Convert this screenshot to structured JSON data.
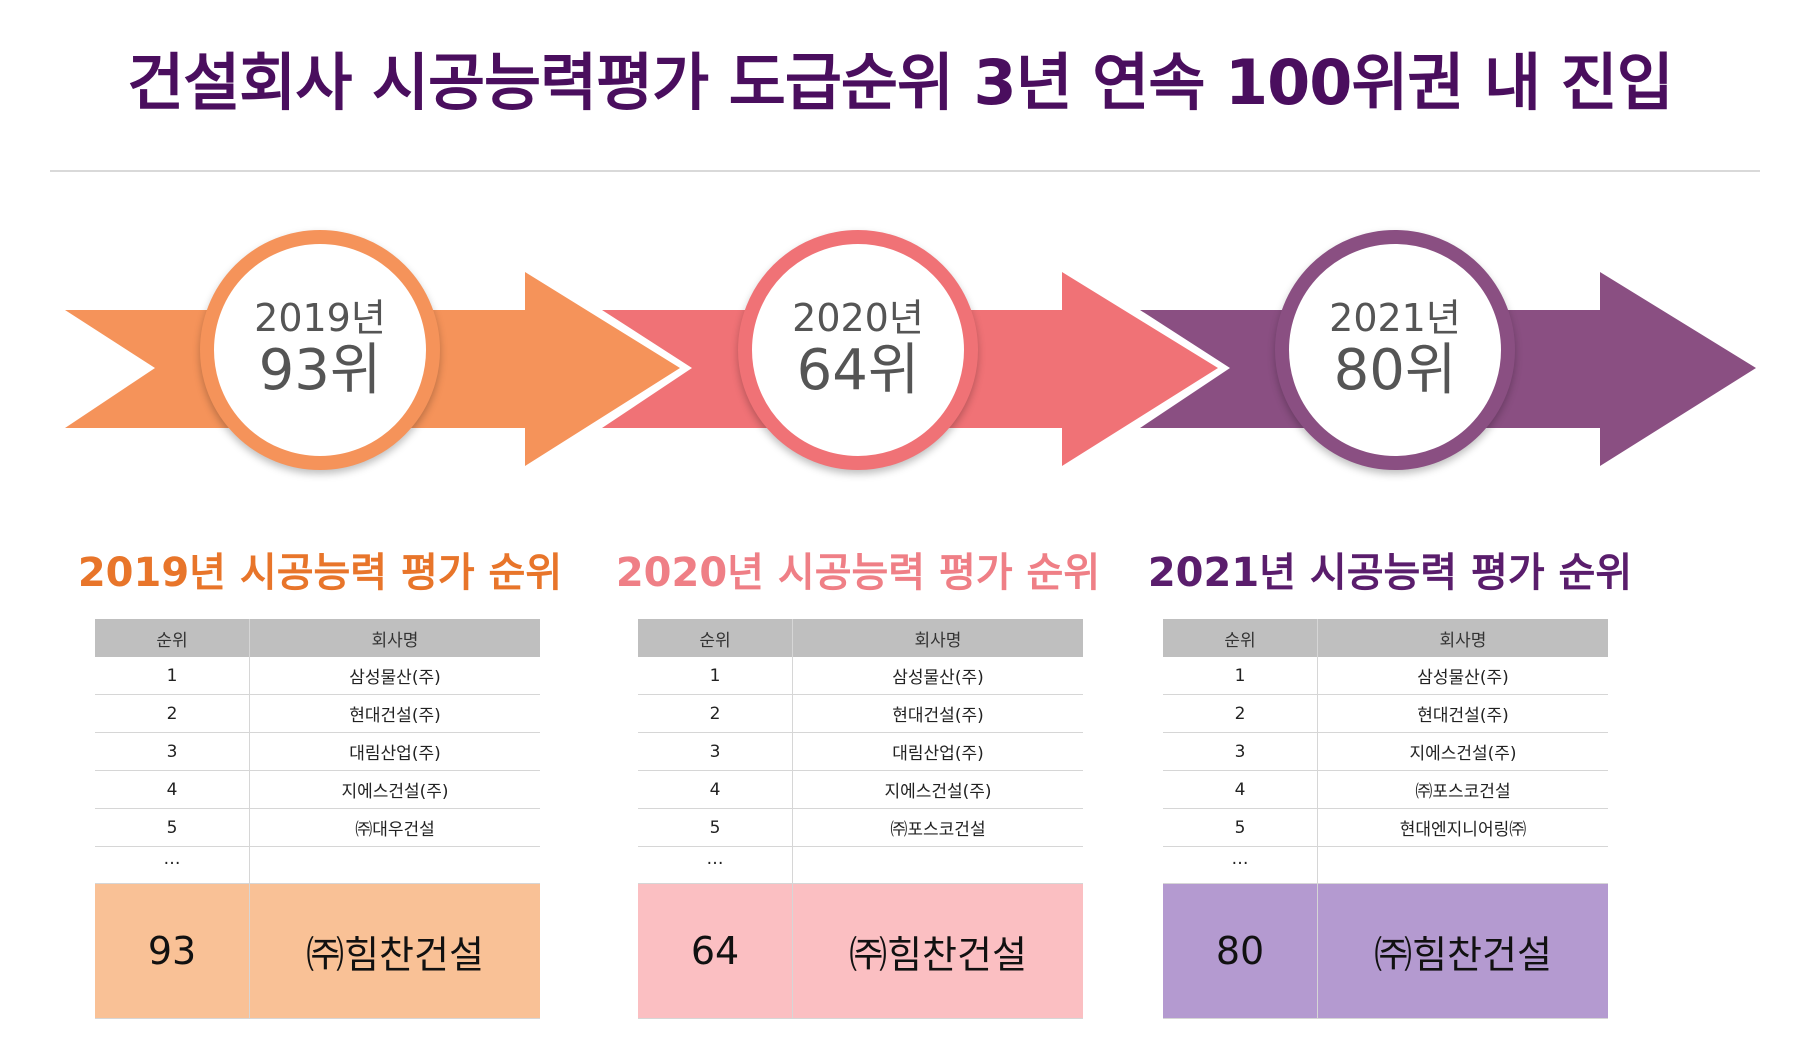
{
  "title": "건설회사 시공능력평가 도급순위 3년 연속 100위권 내 진입",
  "colors": {
    "title": "#4a0e5e",
    "stage_2019": "#f5935a",
    "stage_2020": "#f07276",
    "stage_2021": "#8a4f82",
    "highlight_2019": "#f9c196",
    "highlight_2020": "#fbbfc2",
    "highlight_2021": "#b49ad0",
    "section_2019": "#e8752a",
    "section_2020": "#ef7f86",
    "section_2021": "#5a1d6c"
  },
  "stages": [
    {
      "year": "2019년",
      "rank": "93위"
    },
    {
      "year": "2020년",
      "rank": "64위"
    },
    {
      "year": "2021년",
      "rank": "80위"
    }
  ],
  "sections": [
    {
      "heading": "2019년 시공능력 평가 순위",
      "columns": {
        "rank": "순위",
        "company": "회사명"
      },
      "rows": [
        {
          "rank": "1",
          "company": "삼성물산(주)"
        },
        {
          "rank": "2",
          "company": "현대건설(주)"
        },
        {
          "rank": "3",
          "company": "대림산업(주)"
        },
        {
          "rank": "4",
          "company": "지에스건설(주)"
        },
        {
          "rank": "5",
          "company": "㈜대우건설"
        }
      ],
      "ellipsis": "…",
      "highlight": {
        "rank": "93",
        "company": "㈜힘찬건설"
      }
    },
    {
      "heading": "2020년 시공능력 평가 순위",
      "columns": {
        "rank": "순위",
        "company": "회사명"
      },
      "rows": [
        {
          "rank": "1",
          "company": "삼성물산(주)"
        },
        {
          "rank": "2",
          "company": "현대건설(주)"
        },
        {
          "rank": "3",
          "company": "대림산업(주)"
        },
        {
          "rank": "4",
          "company": "지에스건설(주)"
        },
        {
          "rank": "5",
          "company": "㈜포스코건설"
        }
      ],
      "ellipsis": "…",
      "highlight": {
        "rank": "64",
        "company": "㈜힘찬건설"
      }
    },
    {
      "heading": "2021년 시공능력 평가 순위",
      "columns": {
        "rank": "순위",
        "company": "회사명"
      },
      "rows": [
        {
          "rank": "1",
          "company": "삼성물산(주)"
        },
        {
          "rank": "2",
          "company": "현대건설(주)"
        },
        {
          "rank": "3",
          "company": "지에스건설(주)"
        },
        {
          "rank": "4",
          "company": "㈜포스코건설"
        },
        {
          "rank": "5",
          "company": "현대엔지니어링㈜"
        }
      ],
      "ellipsis": "…",
      "highlight": {
        "rank": "80",
        "company": "㈜힘찬건설"
      }
    }
  ]
}
